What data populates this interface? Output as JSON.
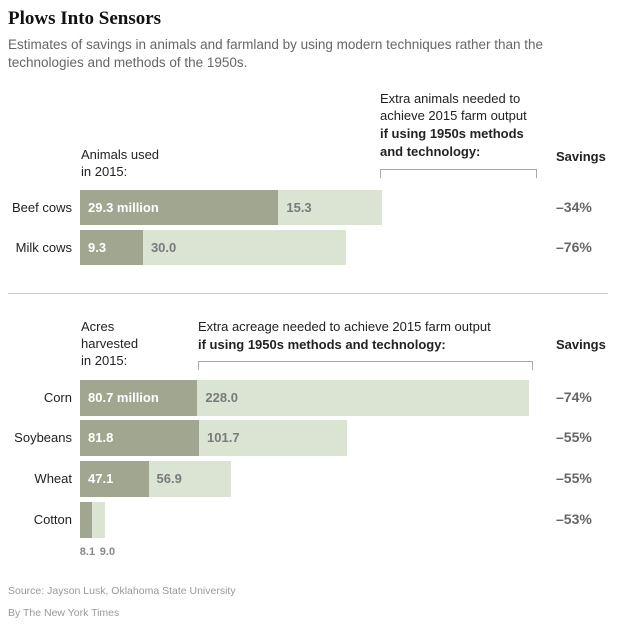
{
  "title": "Plows Into Sensors",
  "subtitle": "Estimates of savings in animals and farmland by using modern techniques rather than the technologies and methods of the 1950s.",
  "animals": {
    "used_label_1": "Animals used",
    "used_label_2": "in 2015:",
    "extra_label_1": "Extra animals needed to",
    "extra_label_2": "achieve 2015 farm output",
    "extra_label_3": "if using 1950s methods",
    "extra_label_4": "and technology:",
    "savings_header": "Savings"
  },
  "acres": {
    "used_label_1": "Acres",
    "used_label_2": "harvested",
    "used_label_3": "in 2015:",
    "extra_label_1": "Extra acreage needed to achieve 2015 farm output",
    "extra_label_2": "if using 1950s methods and technology:",
    "savings_header": "Savings"
  },
  "source": "Source: Jayson Lusk, Oklahoma State University",
  "byline": "By The New York Times",
  "colors": {
    "current": "#a0a68f",
    "extra": "#dbe4d3"
  },
  "chart_data": [
    {
      "type": "bar",
      "orientation": "horizontal",
      "stacked": true,
      "categories": [
        "Beef cows",
        "Milk cows"
      ],
      "series": [
        {
          "name": "Animals used in 2015:",
          "values": [
            29.3,
            9.3
          ],
          "labels": [
            "29.3 million",
            "9.3"
          ]
        },
        {
          "name": "Extra animals needed to achieve 2015 farm output if using 1950s methods and technology:",
          "values": [
            15.3,
            30.0
          ],
          "labels": [
            "15.3",
            "30.0"
          ]
        }
      ],
      "savings": [
        "–34%",
        "–76%"
      ],
      "unit": "million"
    },
    {
      "type": "bar",
      "orientation": "horizontal",
      "stacked": true,
      "categories": [
        "Corn",
        "Soybeans",
        "Wheat",
        "Cotton"
      ],
      "series": [
        {
          "name": "Acres harvested in 2015:",
          "values": [
            80.7,
            81.8,
            47.1,
            8.1
          ],
          "labels": [
            "80.7 million",
            "81.8",
            "47.1",
            "8.1"
          ]
        },
        {
          "name": "Extra acreage needed to achieve 2015 farm output if using 1950s methods and technology:",
          "values": [
            228.0,
            101.7,
            56.9,
            9.0
          ],
          "labels": [
            "228.0",
            "101.7",
            "56.9",
            "9.0"
          ]
        }
      ],
      "savings": [
        "–74%",
        "–55%",
        "–55%",
        "–53%"
      ],
      "unit": "million"
    }
  ]
}
